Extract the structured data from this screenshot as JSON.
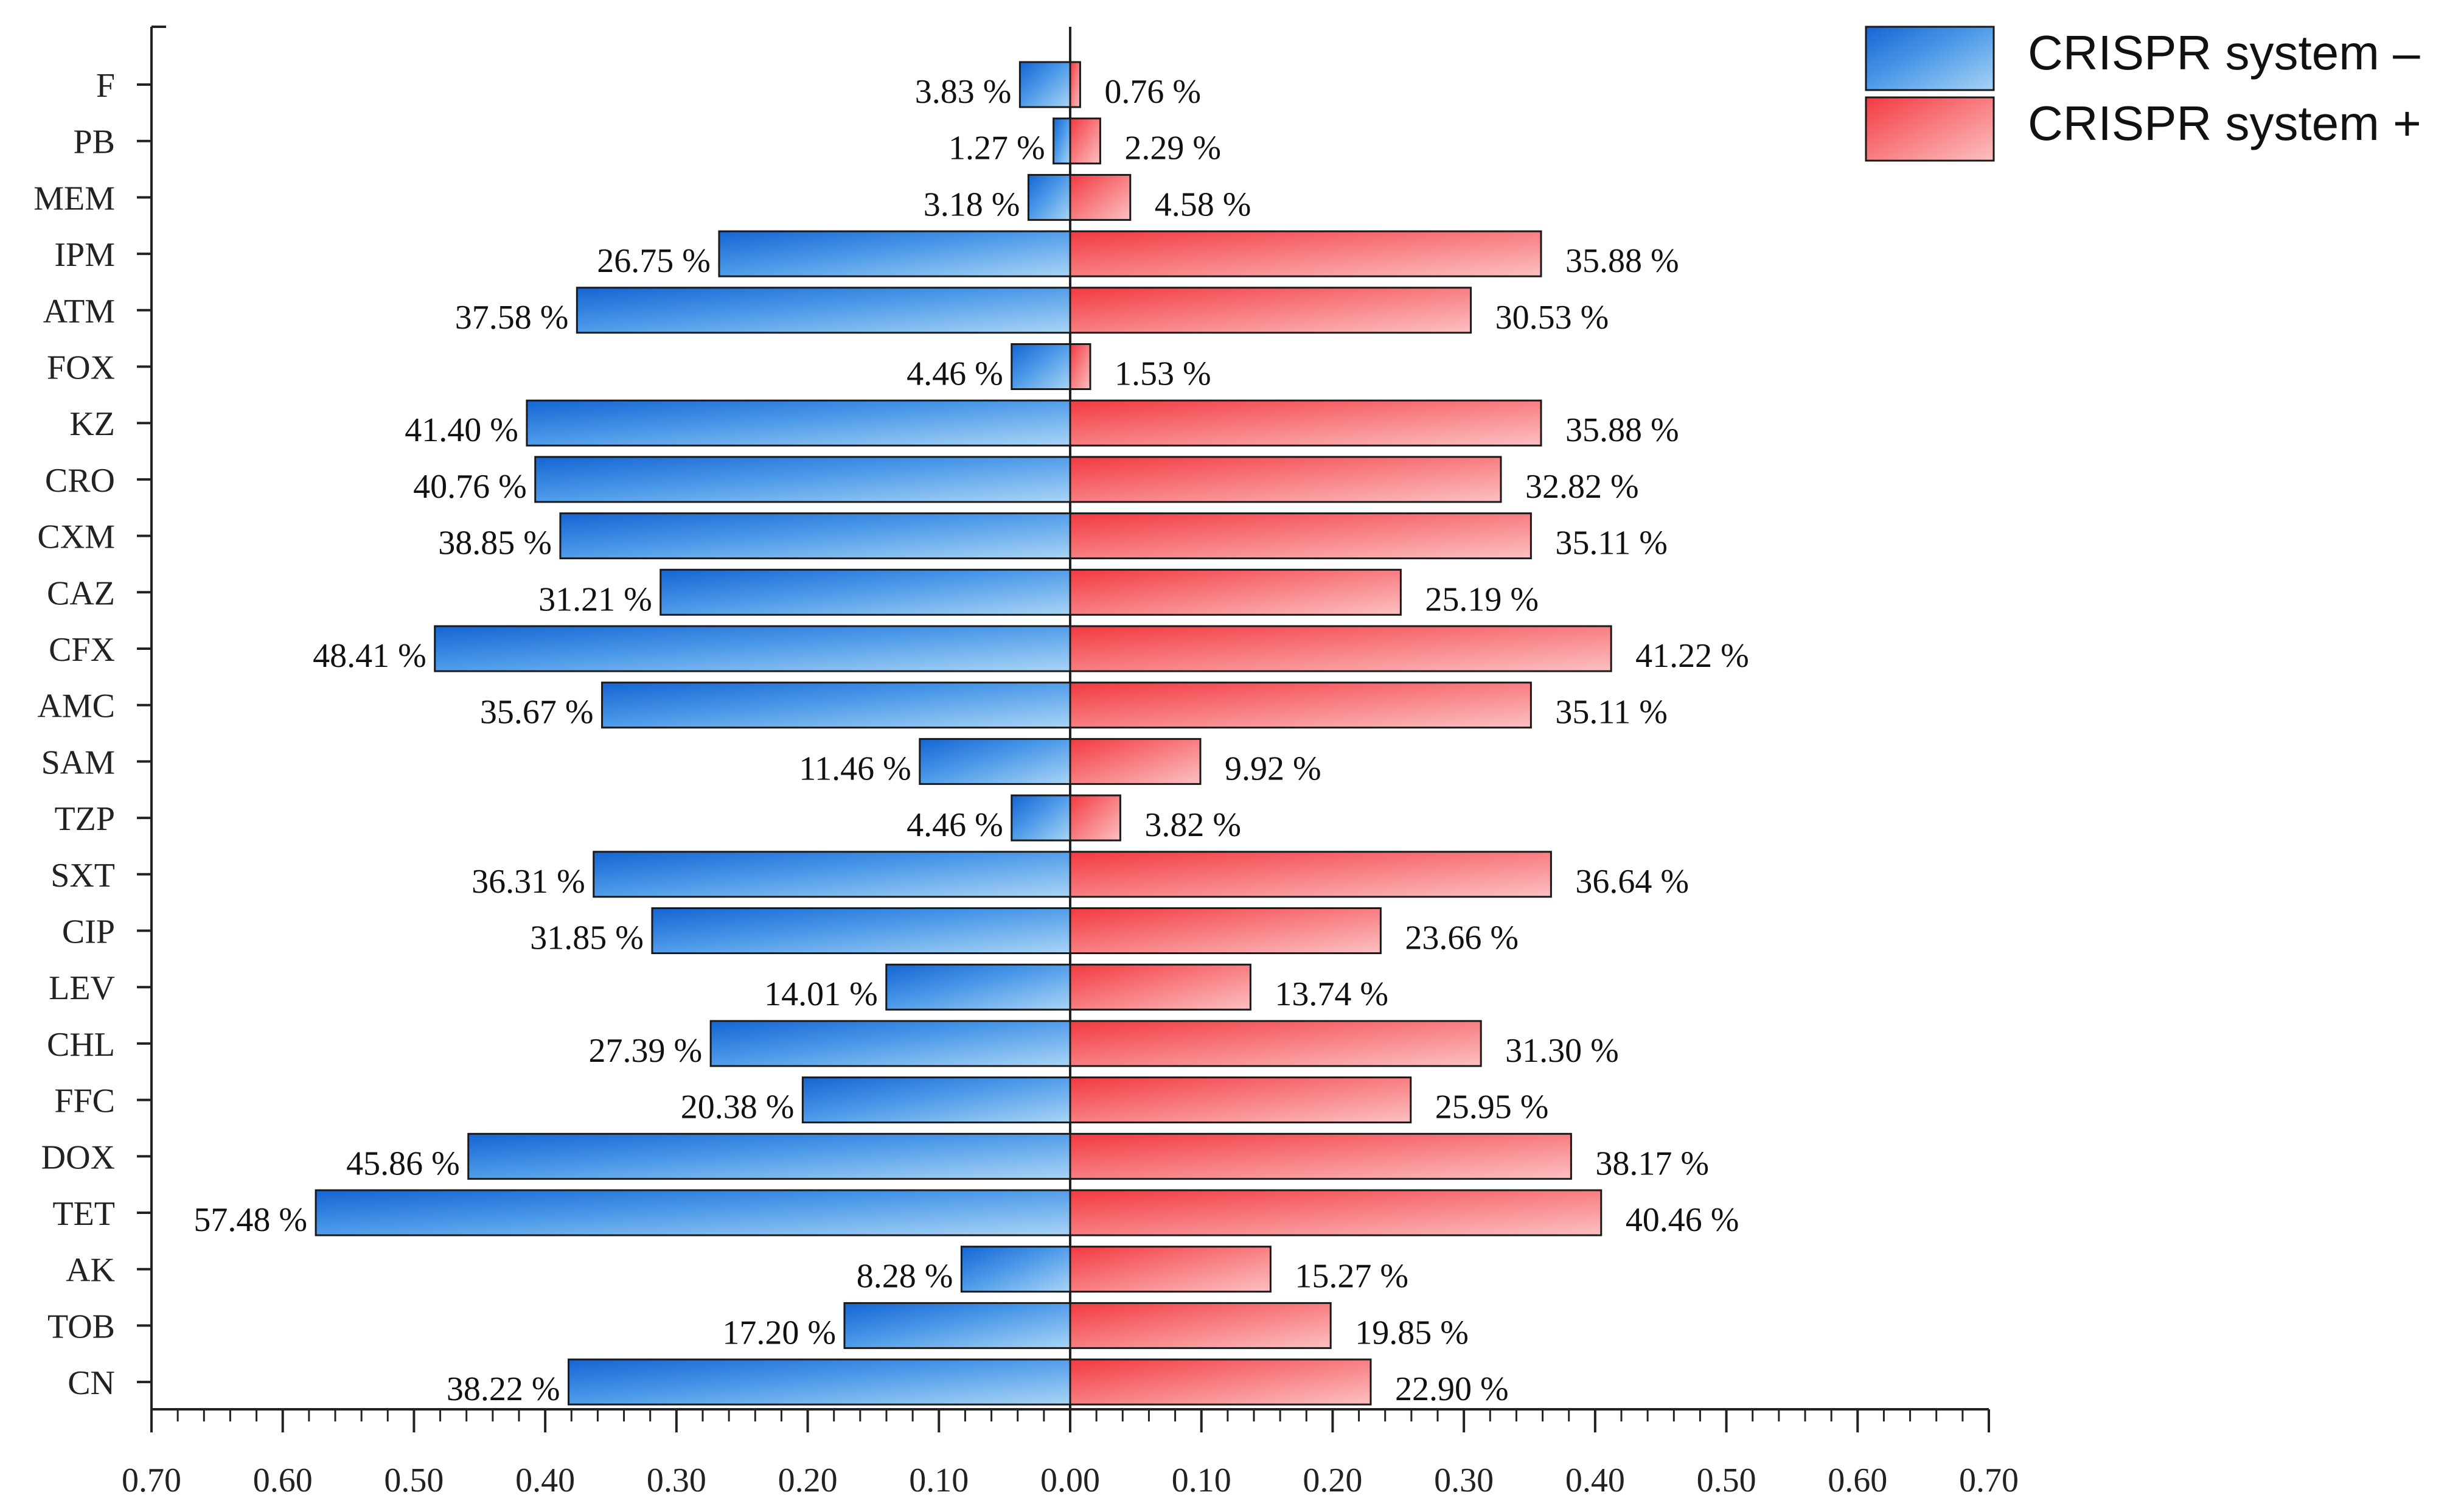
{
  "chart_data": {
    "type": "bar",
    "orientation": "horizontal-diverging",
    "title": "",
    "xlabel": "",
    "ylabel": "",
    "xlim": [
      -0.7,
      0.7
    ],
    "x_ticks": [
      -0.7,
      -0.6,
      -0.5,
      -0.4,
      -0.3,
      -0.2,
      -0.1,
      0.0,
      0.1,
      0.2,
      0.3,
      0.4,
      0.5,
      0.6,
      0.7
    ],
    "x_tick_labels": [
      "0.70",
      "0.60",
      "0.50",
      "0.40",
      "0.30",
      "0.20",
      "0.10",
      "0.00",
      "0.10",
      "0.20",
      "0.30",
      "0.40",
      "0.50",
      "0.60",
      "0.70"
    ],
    "grid": false,
    "legend_position": "top-right",
    "categories": [
      "F",
      "PB",
      "MEM",
      "IPM",
      "ATM",
      "FOX",
      "KZ",
      "CRO",
      "CXM",
      "CAZ",
      "CFX",
      "AMC",
      "SAM",
      "TZP",
      "SXT",
      "CIP",
      "LEV",
      "CHL",
      "FFC",
      "DOX",
      "TET",
      "AK",
      "TOB",
      "CN"
    ],
    "series": [
      {
        "name": "CRISPR system –",
        "side": "left",
        "color": "#1a6fd6",
        "color_light": "#8cc4f4",
        "values": [
          0.0383,
          0.0127,
          0.0318,
          0.2675,
          0.3758,
          0.0446,
          0.414,
          0.4076,
          0.3885,
          0.3121,
          0.4841,
          0.3567,
          0.1146,
          0.0446,
          0.3631,
          0.3185,
          0.1401,
          0.2739,
          0.2038,
          0.4586,
          0.5748,
          0.0828,
          0.172,
          0.3822
        ],
        "labels": [
          "3.83 %",
          "1.27 %",
          "3.18 %",
          "26.75 %",
          "37.58 %",
          "4.46 %",
          "41.40 %",
          "40.76 %",
          "38.85 %",
          "31.21 %",
          "48.41 %",
          "35.67 %",
          "11.46 %",
          "4.46 %",
          "36.31 %",
          "31.85 %",
          "14.01 %",
          "27.39 %",
          "20.38 %",
          "45.86 %",
          "57.48 %",
          "8.28 %",
          "17.20 %",
          "38.22 %"
        ]
      },
      {
        "name": "CRISPR system +",
        "side": "right",
        "color": "#f5484d",
        "color_light": "#fbb3b6",
        "values": [
          0.0076,
          0.0229,
          0.0458,
          0.3588,
          0.3053,
          0.0153,
          0.3588,
          0.3282,
          0.3511,
          0.2519,
          0.4122,
          0.3511,
          0.0992,
          0.0382,
          0.3664,
          0.2366,
          0.1374,
          0.313,
          0.2595,
          0.3817,
          0.4046,
          0.1527,
          0.1985,
          0.229
        ],
        "labels": [
          "0.76 %",
          "2.29 %",
          "4.58 %",
          "35.88 %",
          "30.53 %",
          "1.53 %",
          "35.88 %",
          "32.82 %",
          "35.11 %",
          "25.19 %",
          "41.22 %",
          "35.11 %",
          "9.92 %",
          "3.82 %",
          "36.64 %",
          "23.66 %",
          "13.74 %",
          "31.30 %",
          "25.95 %",
          "38.17 %",
          "40.46 %",
          "15.27 %",
          "19.85 %",
          "22.90 %"
        ]
      }
    ]
  }
}
